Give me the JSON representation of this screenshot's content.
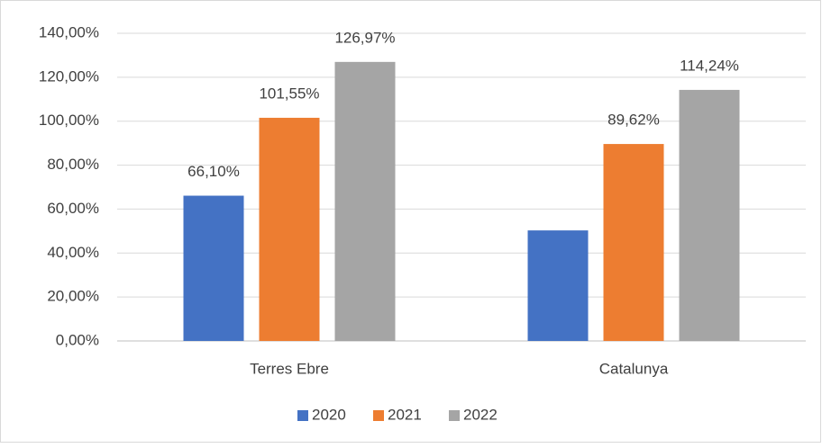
{
  "chart_data": {
    "type": "bar",
    "categories": [
      "Terres Ebre",
      "Catalunya"
    ],
    "series": [
      {
        "name": "2020",
        "color": "#4472c4",
        "values": [
          66.1,
          50.3
        ],
        "value_labels": [
          "66,10%",
          null
        ]
      },
      {
        "name": "2021",
        "color": "#ed7d31",
        "values": [
          101.55,
          89.62
        ],
        "value_labels": [
          "101,55%",
          "89,62%"
        ]
      },
      {
        "name": "2022",
        "color": "#a5a5a5",
        "values": [
          126.97,
          114.24
        ],
        "value_labels": [
          "126,97%",
          "114,24%"
        ]
      }
    ],
    "ylim": [
      0,
      140
    ],
    "yticks": [
      {
        "value": 0,
        "label": "0,00%"
      },
      {
        "value": 20,
        "label": "20,00%"
      },
      {
        "value": 40,
        "label": "40,00%"
      },
      {
        "value": 60,
        "label": "60,00%"
      },
      {
        "value": 80,
        "label": "80,00%"
      },
      {
        "value": 100,
        "label": "100,00%"
      },
      {
        "value": 120,
        "label": "120,00%"
      },
      {
        "value": 140,
        "label": "140,00%"
      }
    ],
    "grid": true,
    "legend": "bottom"
  }
}
